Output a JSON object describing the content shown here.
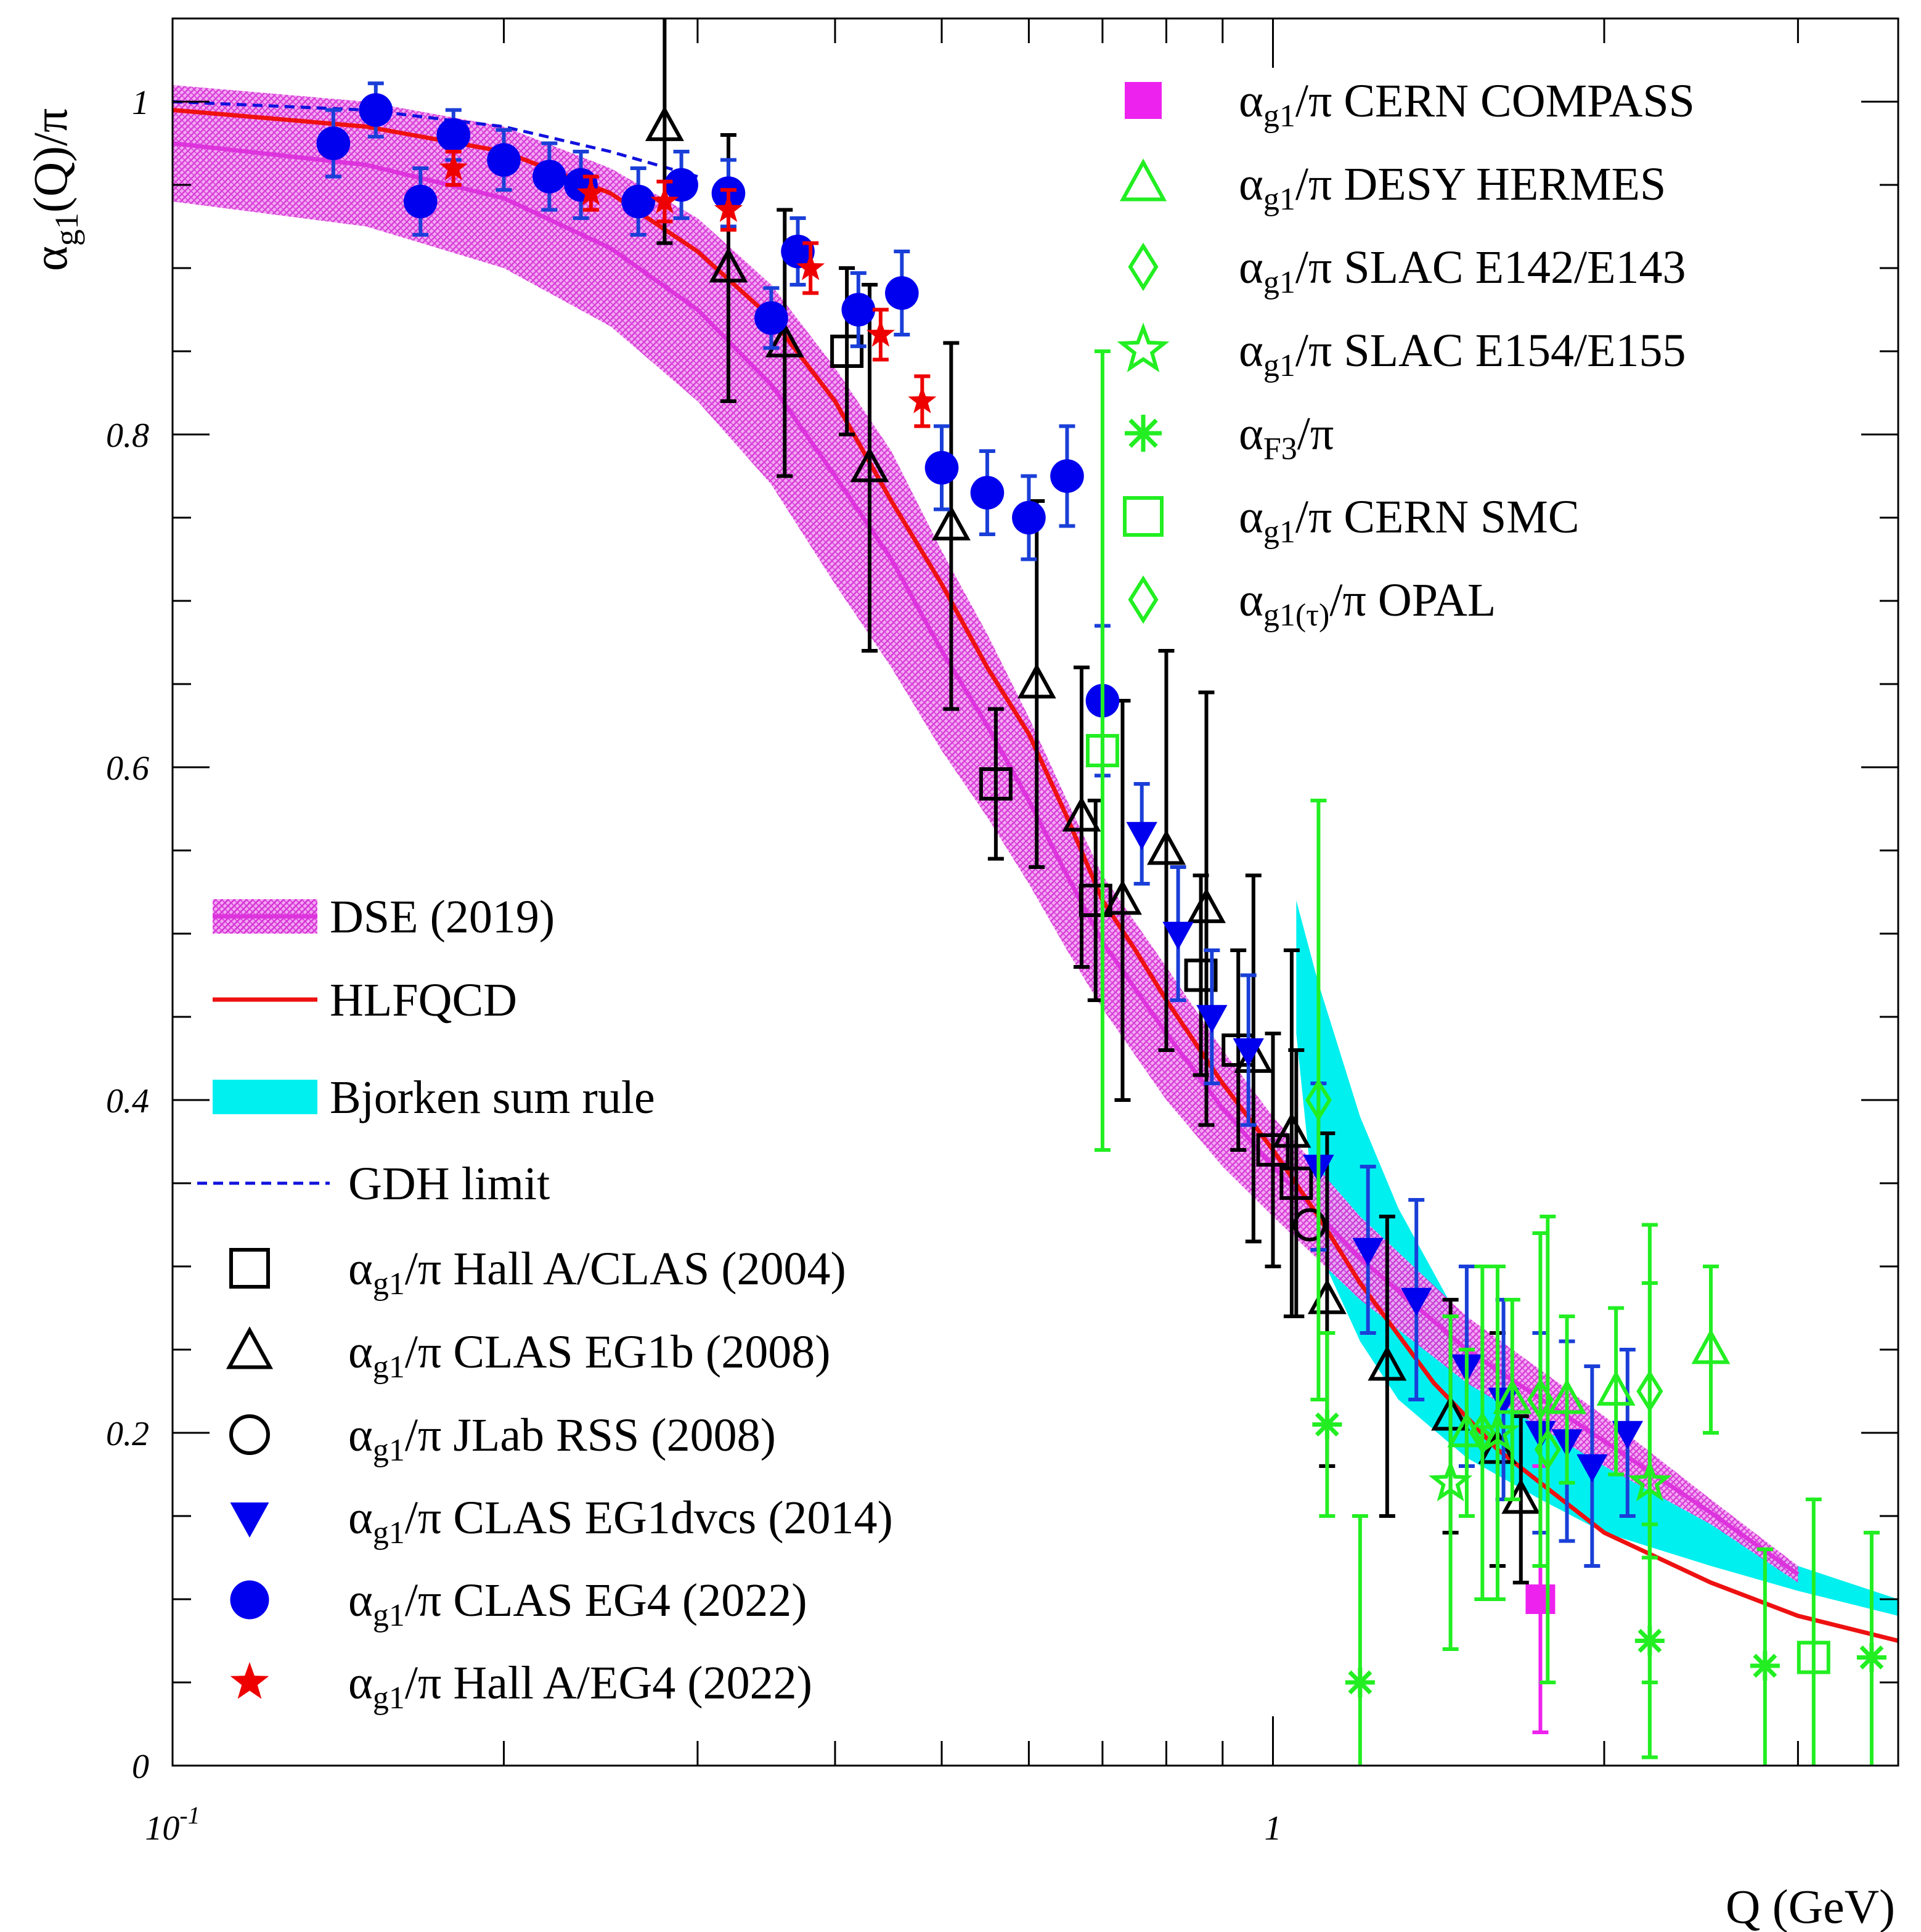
{
  "chart_data": {
    "type": "scatter",
    "title": "",
    "xlabel": "Q (GeV)",
    "ylabel": "αg1(Q)/π",
    "xscale": "log",
    "xlim": [
      0.1,
      3.7
    ],
    "ylim": [
      0,
      1.05
    ],
    "x_ticks": [
      {
        "value": 0.1,
        "label_base": "10",
        "label_exp": "-1"
      },
      {
        "value": 1,
        "label_base": "1",
        "label_exp": ""
      }
    ],
    "y_ticks": [
      {
        "value": 0,
        "label": "0"
      },
      {
        "value": 0.2,
        "label": "0.2"
      },
      {
        "value": 0.4,
        "label": "0.4"
      },
      {
        "value": 0.6,
        "label": "0.6"
      },
      {
        "value": 0.8,
        "label": "0.8"
      },
      {
        "value": 1,
        "label": "1"
      }
    ],
    "colors": {
      "dse": "#dd33dd",
      "hlfqcd": "#ee1111",
      "bjorken": "#00f0f0",
      "gdh": "#1111dd",
      "black": "#000000",
      "blue": "#0000ee",
      "blue_err": "#1a3fd8",
      "red": "#ee0000",
      "green": "#22ee22",
      "magenta": "#ee22ee"
    },
    "bands": [
      {
        "name": "DSE (2019)",
        "x": [
          0.1,
          0.15,
          0.2,
          0.25,
          0.3,
          0.35,
          0.4,
          0.45,
          0.5,
          0.55,
          0.6,
          0.65,
          0.7,
          0.8,
          0.9,
          1.0,
          1.2,
          1.5,
          2.0,
          2.5,
          3.0
        ],
        "lower": [
          0.94,
          0.925,
          0.9,
          0.865,
          0.82,
          0.77,
          0.71,
          0.66,
          0.61,
          0.57,
          0.53,
          0.49,
          0.455,
          0.4,
          0.36,
          0.33,
          0.28,
          0.23,
          0.18,
          0.145,
          0.11
        ],
        "upper": [
          1.01,
          1.0,
          0.985,
          0.96,
          0.93,
          0.89,
          0.84,
          0.79,
          0.73,
          0.68,
          0.63,
          0.58,
          0.535,
          0.48,
          0.43,
          0.39,
          0.33,
          0.27,
          0.21,
          0.16,
          0.12
        ],
        "center": [
          0.975,
          0.962,
          0.942,
          0.912,
          0.875,
          0.83,
          0.775,
          0.725,
          0.67,
          0.625,
          0.58,
          0.535,
          0.495,
          0.44,
          0.395,
          0.36,
          0.305,
          0.25,
          0.195,
          0.152,
          0.115
        ]
      },
      {
        "name": "Bjorken sum rule",
        "x": [
          1.05,
          1.1,
          1.2,
          1.3,
          1.5,
          1.75,
          2.0,
          2.5,
          3.0,
          3.7
        ],
        "lower": [
          0.44,
          0.31,
          0.255,
          0.22,
          0.185,
          0.16,
          0.14,
          0.12,
          0.105,
          0.09
        ],
        "upper": [
          0.52,
          0.47,
          0.39,
          0.335,
          0.26,
          0.21,
          0.18,
          0.145,
          0.12,
          0.1
        ]
      }
    ],
    "curves": [
      {
        "name": "HLFQCD",
        "x": [
          0.1,
          0.15,
          0.2,
          0.25,
          0.3,
          0.35,
          0.4,
          0.45,
          0.5,
          0.55,
          0.6,
          0.65,
          0.7,
          0.75,
          0.8,
          0.9,
          1.0,
          1.1,
          1.2,
          1.4,
          1.6,
          2.0,
          2.5,
          3.0,
          3.7
        ],
        "y": [
          0.995,
          0.985,
          0.97,
          0.945,
          0.91,
          0.87,
          0.82,
          0.76,
          0.71,
          0.66,
          0.62,
          0.57,
          0.52,
          0.49,
          0.46,
          0.41,
          0.37,
          0.33,
          0.29,
          0.23,
          0.19,
          0.14,
          0.11,
          0.09,
          0.075
        ]
      },
      {
        "name": "GDH limit",
        "x": [
          0.1,
          0.15,
          0.2,
          0.25,
          0.3
        ],
        "y": [
          1.0,
          0.995,
          0.985,
          0.97,
          0.955
        ]
      }
    ],
    "series": [
      {
        "name": "αg1/π Hall A/CLAS (2004)",
        "marker": "square-open",
        "color": "#000000",
        "points": [
          [
            0.41,
            0.85,
            0.05
          ],
          [
            0.56,
            0.59,
            0.045
          ],
          [
            0.69,
            0.52,
            0.06
          ],
          [
            0.86,
            0.475,
            0.06
          ],
          [
            0.93,
            0.43,
            0.06
          ],
          [
            1.0,
            0.37,
            0.07
          ],
          [
            1.05,
            0.35,
            0.08
          ]
        ]
      },
      {
        "name": "αg1/π CLAS EG1b (2008)",
        "marker": "triangle-up-open",
        "color": "#000000",
        "points": [
          [
            0.28,
            0.985,
            0.07
          ],
          [
            0.32,
            0.9,
            0.08
          ],
          [
            0.36,
            0.855,
            0.08
          ],
          [
            0.43,
            0.78,
            0.11
          ],
          [
            0.51,
            0.745,
            0.11
          ],
          [
            0.61,
            0.65,
            0.11
          ],
          [
            0.67,
            0.57,
            0.09
          ],
          [
            0.73,
            0.52,
            0.12
          ],
          [
            0.8,
            0.55,
            0.12
          ],
          [
            0.87,
            0.515,
            0.13
          ],
          [
            0.96,
            0.425,
            0.11
          ],
          [
            1.04,
            0.38,
            0.11
          ],
          [
            1.12,
            0.28,
            0.1
          ],
          [
            1.27,
            0.24,
            0.09
          ],
          [
            1.45,
            0.21,
            0.07
          ],
          [
            1.6,
            0.19,
            0.07
          ],
          [
            1.68,
            0.16,
            0.05
          ]
        ]
      },
      {
        "name": "αg1/π JLab RSS (2008)",
        "marker": "circle-open",
        "color": "#000000",
        "points": [
          [
            1.08,
            0.325,
            0.0
          ]
        ]
      },
      {
        "name": "αg1/π CLAS EG1dvcs (2014)",
        "marker": "triangle-down-filled",
        "color": "#0000ee",
        "points": [
          [
            0.76,
            0.56,
            0.03
          ],
          [
            0.82,
            0.5,
            0.04
          ],
          [
            0.88,
            0.45,
            0.04
          ],
          [
            0.95,
            0.43,
            0.045
          ],
          [
            1.1,
            0.36,
            0.05
          ],
          [
            1.22,
            0.31,
            0.05
          ],
          [
            1.35,
            0.28,
            0.06
          ],
          [
            1.5,
            0.24,
            0.06
          ],
          [
            1.62,
            0.22,
            0.06
          ],
          [
            1.75,
            0.2,
            0.06
          ],
          [
            1.85,
            0.195,
            0.06
          ],
          [
            1.95,
            0.18,
            0.06
          ],
          [
            2.1,
            0.2,
            0.05
          ]
        ]
      },
      {
        "name": "αg1/π CLAS EG4 (2022)",
        "marker": "circle-filled",
        "color": "#0000ee",
        "points": [
          [
            0.14,
            0.975,
            0.02
          ],
          [
            0.153,
            0.995,
            0.016
          ],
          [
            0.168,
            0.94,
            0.02
          ],
          [
            0.18,
            0.98,
            0.015
          ],
          [
            0.2,
            0.965,
            0.018
          ],
          [
            0.22,
            0.955,
            0.02
          ],
          [
            0.235,
            0.95,
            0.02
          ],
          [
            0.265,
            0.94,
            0.02
          ],
          [
            0.29,
            0.95,
            0.02
          ],
          [
            0.32,
            0.945,
            0.02
          ],
          [
            0.35,
            0.87,
            0.018
          ],
          [
            0.37,
            0.91,
            0.02
          ],
          [
            0.42,
            0.875,
            0.022
          ],
          [
            0.46,
            0.885,
            0.025
          ],
          [
            0.5,
            0.78,
            0.025
          ],
          [
            0.55,
            0.765,
            0.025
          ],
          [
            0.6,
            0.75,
            0.025
          ],
          [
            0.65,
            0.775,
            0.03
          ],
          [
            0.7,
            0.64,
            0.045
          ]
        ]
      },
      {
        "name": "αg1/π Hall A/EG4 (2022)",
        "marker": "star-filled",
        "color": "#ee0000",
        "points": [
          [
            0.18,
            0.96,
            0.01
          ],
          [
            0.24,
            0.945,
            0.01
          ],
          [
            0.28,
            0.94,
            0.012
          ],
          [
            0.32,
            0.935,
            0.012
          ],
          [
            0.38,
            0.9,
            0.015
          ],
          [
            0.44,
            0.86,
            0.015
          ],
          [
            0.48,
            0.82,
            0.015
          ]
        ]
      },
      {
        "name": "αg1/π CERN COMPASS",
        "marker": "square-filled",
        "color": "#ee22ee",
        "points": [
          [
            1.75,
            0.1,
            0.08
          ]
        ]
      },
      {
        "name": "αg1/π DESY HERMES",
        "marker": "triangle-up-open",
        "color": "#22ee22",
        "points": [
          [
            1.5,
            0.2,
            0.05
          ],
          [
            1.65,
            0.22,
            0.06
          ],
          [
            1.85,
            0.22,
            0.05
          ],
          [
            2.05,
            0.225,
            0.05
          ],
          [
            2.5,
            0.25,
            0.05
          ]
        ]
      },
      {
        "name": "αg1/π SLAC E142/E143",
        "marker": "diamond-open",
        "color": "#22ee22",
        "points": [
          [
            1.1,
            0.4,
            0.18
          ],
          [
            1.55,
            0.2,
            0.1
          ],
          [
            1.75,
            0.22,
            0.1
          ],
          [
            2.2,
            0.225,
            0.1
          ]
        ]
      },
      {
        "name": "αg1/π SLAC E154/E155",
        "marker": "star-open",
        "color": "#22ee22",
        "points": [
          [
            1.45,
            0.17,
            0.1
          ],
          [
            1.6,
            0.2,
            0.1
          ],
          [
            2.2,
            0.17,
            0.12
          ]
        ]
      },
      {
        "name": "αF3/π",
        "marker": "asterisk",
        "color": "#22ee22",
        "points": [
          [
            1.12,
            0.205,
            0.055
          ],
          [
            1.2,
            0.05,
            0.1
          ],
          [
            2.2,
            0.075,
            0.07
          ],
          [
            2.8,
            0.06,
            0.07
          ],
          [
            3.5,
            0.065,
            0.075
          ]
        ]
      },
      {
        "name": "αg1/π CERN SMC",
        "marker": "square-open",
        "color": "#22ee22",
        "points": [
          [
            0.7,
            0.61,
            0.24
          ],
          [
            3.1,
            0.065,
            0.095
          ]
        ]
      },
      {
        "name": "αg1(τ)/π OPAL",
        "marker": "diamond-open",
        "color": "#22ee22",
        "points": [
          [
            1.777,
            0.19,
            0.14
          ]
        ]
      }
    ]
  },
  "legend_left": [
    {
      "key": "dse",
      "symbol": "band-dse",
      "base": "DSE (2019)",
      "sub": "",
      "rest": ""
    },
    {
      "key": "hlf",
      "symbol": "line-red",
      "base": "HLFQCD",
      "sub": "",
      "rest": ""
    },
    {
      "key": "bjk",
      "symbol": "band-cyan",
      "base": "Bjorken sum rule",
      "sub": "",
      "rest": ""
    },
    {
      "key": "gdh",
      "symbol": "line-dashed-blue",
      "base": "GDH limit",
      "sub": "",
      "rest": ""
    },
    {
      "key": "halla",
      "symbol": "square-open-black",
      "base": "α",
      "sub": "g1",
      "rest": "/π Hall A/CLAS (2004)"
    },
    {
      "key": "eg1b",
      "symbol": "triangle-open-black",
      "base": "α",
      "sub": "g1",
      "rest": "/π CLAS EG1b (2008)"
    },
    {
      "key": "rss",
      "symbol": "circle-open-black",
      "base": "α",
      "sub": "g1",
      "rest": "/π JLab RSS (2008)"
    },
    {
      "key": "eg1dvcs",
      "symbol": "triangle-down-blue",
      "base": "α",
      "sub": "g1",
      "rest": "/π CLAS EG1dvcs (2014)"
    },
    {
      "key": "eg4",
      "symbol": "circle-blue",
      "base": "α",
      "sub": "g1",
      "rest": "/π CLAS EG4 (2022)"
    },
    {
      "key": "halla_eg4",
      "symbol": "star-red",
      "base": "α",
      "sub": "g1",
      "rest": "/π Hall A/EG4 (2022)"
    }
  ],
  "legend_right": [
    {
      "key": "compass",
      "symbol": "square-magenta",
      "base": "α",
      "sub": "g1",
      "rest": "/π CERN COMPASS"
    },
    {
      "key": "hermes",
      "symbol": "triangle-open-green",
      "base": "α",
      "sub": "g1",
      "rest": "/π DESY HERMES"
    },
    {
      "key": "e142",
      "symbol": "diamond-open-green",
      "base": "α",
      "sub": "g1",
      "rest": "/π SLAC E142/E143"
    },
    {
      "key": "e154",
      "symbol": "star-open-green",
      "base": "α",
      "sub": "g1",
      "rest": "/π SLAC E154/E155"
    },
    {
      "key": "f3",
      "symbol": "asterisk-green",
      "base": "α",
      "sub": "F3",
      "rest": "/π"
    },
    {
      "key": "smc",
      "symbol": "square-open-green",
      "base": "α",
      "sub": "g1",
      "rest": "/π CERN SMC"
    },
    {
      "key": "opal",
      "symbol": "diamond-open-green",
      "base": "α",
      "sub": "g1(τ)",
      "rest": "/π OPAL"
    }
  ],
  "y_title": {
    "base": "α",
    "sub": "g1",
    "rest": "(Q)/π"
  }
}
